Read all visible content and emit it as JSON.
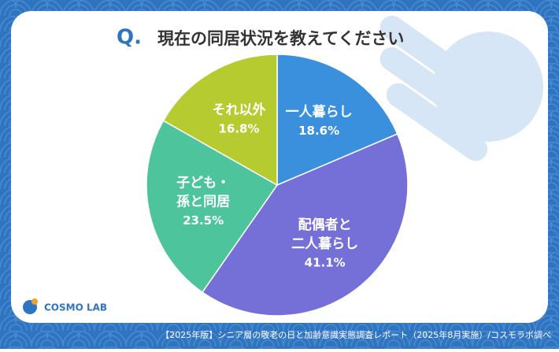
{
  "chart_data": {
    "type": "pie",
    "title_mark": "Q.",
    "title": "現在の同居状況を教えてください",
    "categories": [
      [
        "一人暮らし"
      ],
      [
        "配偶者と",
        "二人暮らし"
      ],
      [
        "子ども・",
        "孫と同居"
      ],
      [
        "それ以外"
      ]
    ],
    "values": [
      18.6,
      41.1,
      23.5,
      16.8
    ],
    "value_labels": [
      "18.6%",
      "41.1%",
      "23.5%",
      "16.8%"
    ],
    "colors": [
      "#3a90dc",
      "#7470d8",
      "#4dc49c",
      "#b6cb2f"
    ]
  },
  "logo": "COSMO LAB",
  "footer": "【2025年版】シニア層の敬老の日と加齢意識実態調査レポート（2025年8月実施）/コスモラボ調べ"
}
